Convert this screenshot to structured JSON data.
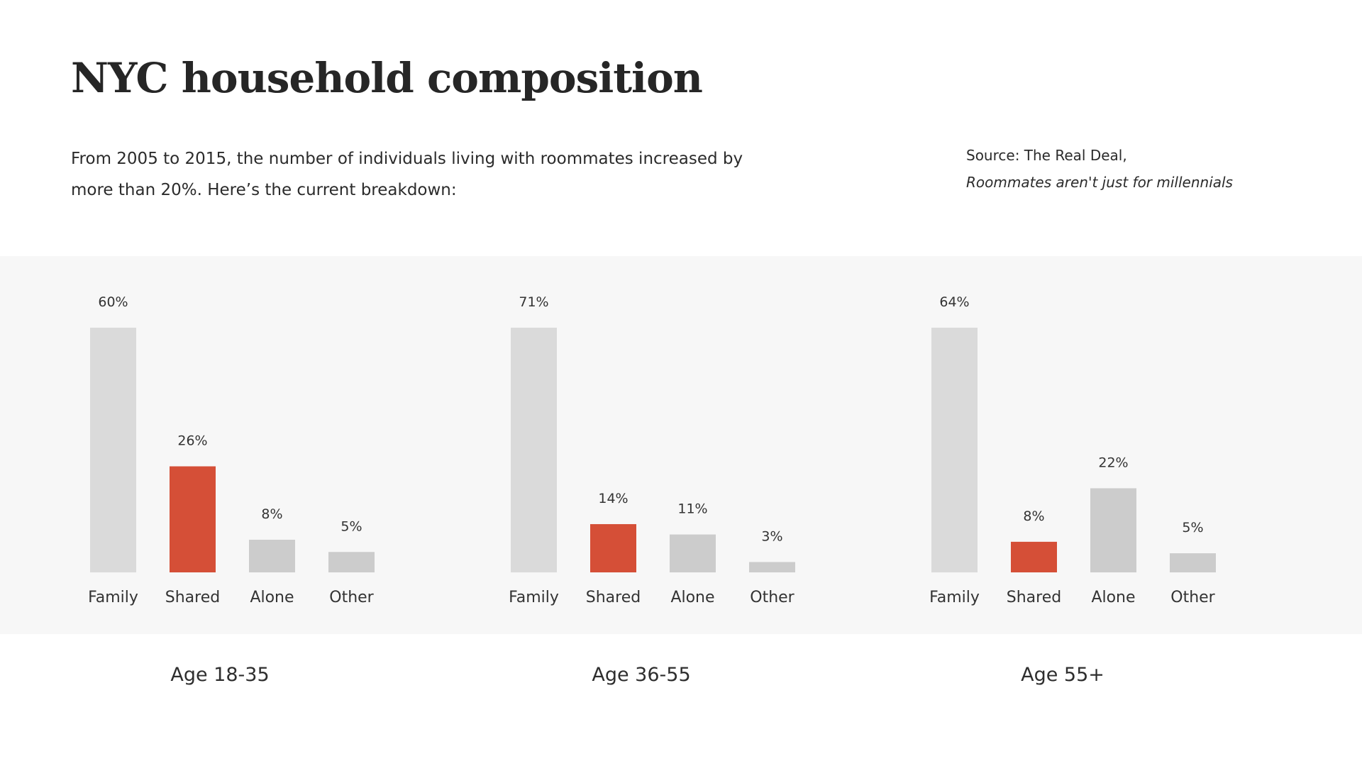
{
  "title": "NYC household composition",
  "subtitle": "From 2005 to 2015, the number of individuals living with roommates increased by more than 20%. Here’s the current breakdown:",
  "source": {
    "prefix": "Source: The Real Deal,",
    "article": "Roommates aren't just for millennials"
  },
  "colors": {
    "family": "#dadada",
    "shared": "#d54f37",
    "other_bars": "#cccccc",
    "panel_background": "#f7f7f7"
  },
  "chart_data": [
    {
      "type": "bar",
      "group_label": "Age 18-35",
      "categories": [
        "Family",
        "Shared",
        "Alone",
        "Other"
      ],
      "values": [
        60,
        26,
        8,
        5
      ],
      "data_labels": [
        "60%",
        "26%",
        "8%",
        "5%"
      ],
      "ylim": [
        0,
        60
      ],
      "grid": false,
      "highlight": "Shared"
    },
    {
      "type": "bar",
      "group_label": "Age 36-55",
      "categories": [
        "Family",
        "Shared",
        "Alone",
        "Other"
      ],
      "values": [
        71,
        14,
        11,
        3
      ],
      "data_labels": [
        "71%",
        "14%",
        "11%",
        "3%"
      ],
      "ylim": [
        0,
        71
      ],
      "grid": false,
      "highlight": "Shared"
    },
    {
      "type": "bar",
      "group_label": "Age 55+",
      "categories": [
        "Family",
        "Shared",
        "Alone",
        "Other"
      ],
      "values": [
        64,
        8,
        22,
        5
      ],
      "data_labels": [
        "64%",
        "8%",
        "22%",
        "5%"
      ],
      "ylim": [
        0,
        64
      ],
      "grid": false,
      "highlight": "Shared"
    }
  ]
}
